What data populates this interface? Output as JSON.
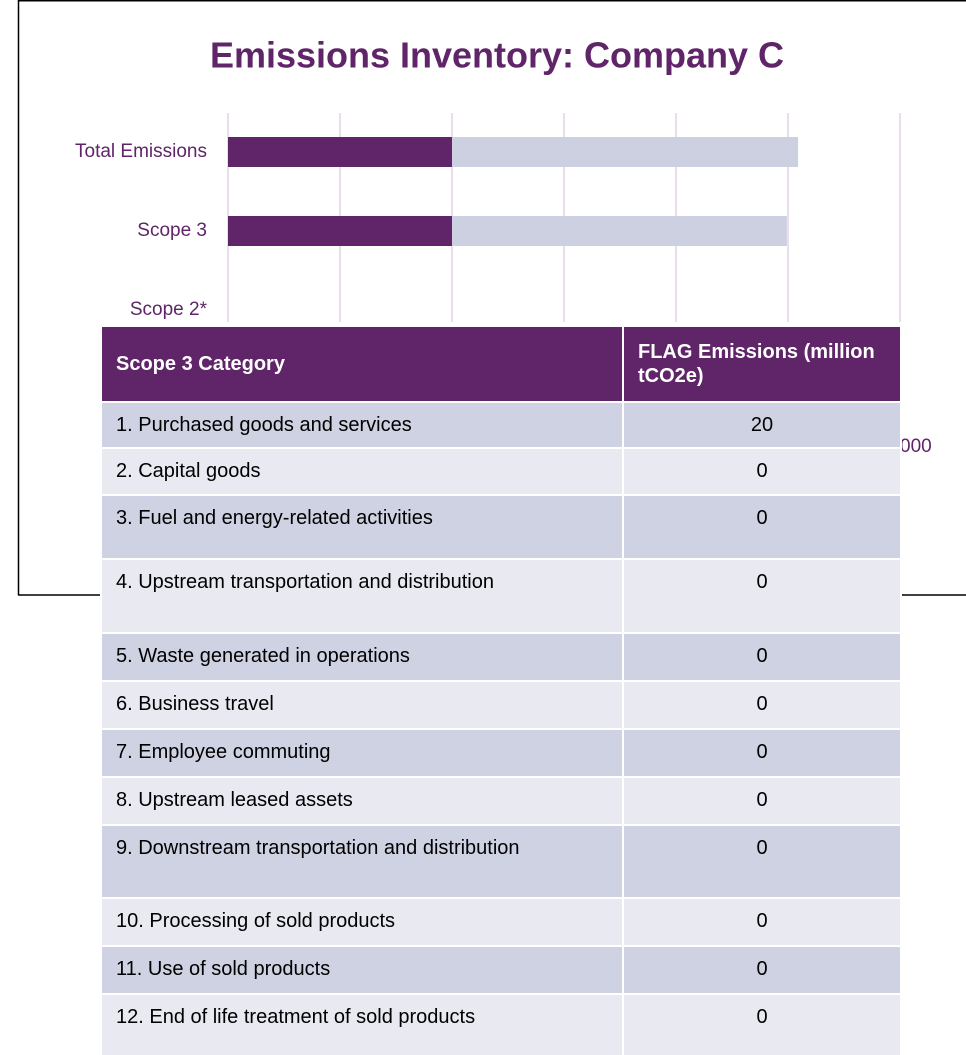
{
  "chart_data": {
    "type": "bar",
    "orientation": "horizontal",
    "stacked": true,
    "title": "Emissions Inventory: Company C",
    "categories": [
      "Total Emissions",
      "Scope 3",
      "Scope 2*"
    ],
    "series": [
      {
        "color": "#5f2568",
        "values": [
          40000,
          40000,
          null
        ]
      },
      {
        "color": "#cdd0e0",
        "values": [
          61800,
          59800,
          null
        ]
      }
    ],
    "xlim": [
      0,
      120000
    ],
    "xticks": [
      0,
      20000,
      40000,
      60000,
      80000,
      100000,
      120000
    ],
    "grid": true
  },
  "table": {
    "header": [
      "Scope 3 Category",
      "FLAG Emissions (million tCO2e)"
    ],
    "rows": [
      [
        "1. Purchased goods and services",
        20
      ],
      [
        "2. Capital goods",
        0
      ],
      [
        "3. Fuel and energy-related activities",
        0
      ],
      [
        "4. Upstream transportation and distribution",
        0
      ],
      [
        "5. Waste generated in operations",
        0
      ],
      [
        "6. Business travel",
        0
      ],
      [
        "7. Employee commuting",
        0
      ],
      [
        "8. Upstream leased assets",
        0
      ],
      [
        "9. Downstream transportation and distribution",
        0
      ],
      [
        "10. Processing of sold products",
        0
      ],
      [
        "11. Use of sold products",
        0
      ],
      [
        "12. End of life treatment of sold products",
        0
      ]
    ]
  }
}
